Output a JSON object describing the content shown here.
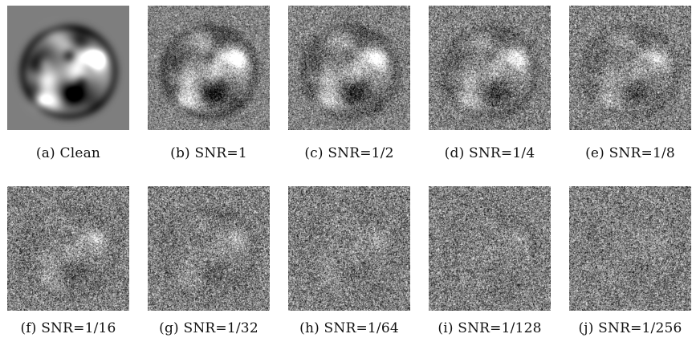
{
  "figure": {
    "panels": [
      {
        "caption": "(a) Clean",
        "snr": null
      },
      {
        "caption": "(b) SNR=1",
        "snr": 1
      },
      {
        "caption": "(c) SNR=1/2",
        "snr": 0.5
      },
      {
        "caption": "(d) SNR=1/4",
        "snr": 0.25
      },
      {
        "caption": "(e) SNR=1/8",
        "snr": 0.125
      },
      {
        "caption": "(f) SNR=1/16",
        "snr": 0.0625
      },
      {
        "caption": "(g) SNR=1/32",
        "snr": 0.03125
      },
      {
        "caption": "(h) SNR=1/64",
        "snr": 0.015625
      },
      {
        "caption": "(i) SNR=1/128",
        "snr": 0.0078125
      },
      {
        "caption": "(j) SNR=1/256",
        "snr": 0.00390625
      }
    ]
  }
}
